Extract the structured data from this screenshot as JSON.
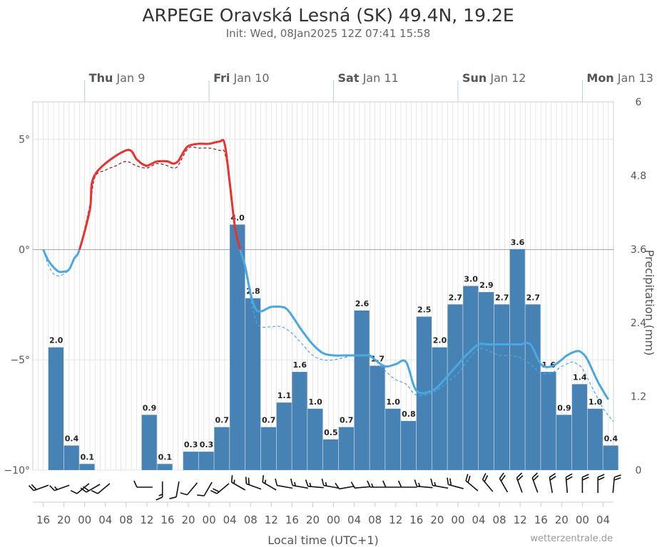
{
  "header": {
    "title": "ARPEGE Oravská Lesná (SK) 49.4N, 19.2E",
    "subtitle": "Init: Wed, 08Jan2025 12Z 07:41 15:58"
  },
  "credit": "wetterzentrale.de",
  "colors": {
    "bar": "#4682b4",
    "temp_below": "#4aa8e0",
    "temp_above": "#e8322e",
    "dewpoint_below": "#4aa8e0",
    "dewpoint_above": "#8b1a1a",
    "grid": "#dddddd",
    "wind": "#111111"
  },
  "chart_data": {
    "type": "bar",
    "title": "ARPEGE Oravská Lesná (SK) 49.4N, 19.2E",
    "xlabel": "Local time (UTC+1)",
    "ylabel_right": "Precipitation (mm)",
    "x_unit": "hours since Wed 08 Jan 16:00 local",
    "xlim": [
      -2,
      110
    ],
    "y_left_lim": [
      -10,
      6.7
    ],
    "y_right_lim": [
      0,
      6
    ],
    "left_ticks": [
      {
        "value": 5,
        "label": "5°"
      },
      {
        "value": 0,
        "label": "0°"
      },
      {
        "value": -5,
        "label": "−5°"
      },
      {
        "value": -10,
        "label": "−10°"
      }
    ],
    "right_ticks": [
      {
        "value": 6,
        "label": "6"
      },
      {
        "value": 4.8,
        "label": "4.8"
      },
      {
        "value": 3.6,
        "label": "3.6"
      },
      {
        "value": 2.4,
        "label": "2.4"
      },
      {
        "value": 1.2,
        "label": "1.2"
      },
      {
        "value": 0,
        "label": "0"
      }
    ],
    "x_ticks": [
      {
        "t": 0,
        "label": "16"
      },
      {
        "t": 4,
        "label": "20"
      },
      {
        "t": 8,
        "label": "00"
      },
      {
        "t": 12,
        "label": "04"
      },
      {
        "t": 16,
        "label": "08"
      },
      {
        "t": 20,
        "label": "12"
      },
      {
        "t": 24,
        "label": "16"
      },
      {
        "t": 28,
        "label": "20"
      },
      {
        "t": 32,
        "label": "00"
      },
      {
        "t": 36,
        "label": "04"
      },
      {
        "t": 40,
        "label": "08"
      },
      {
        "t": 44,
        "label": "12"
      },
      {
        "t": 48,
        "label": "16"
      },
      {
        "t": 52,
        "label": "20"
      },
      {
        "t": 56,
        "label": "00"
      },
      {
        "t": 60,
        "label": "04"
      },
      {
        "t": 64,
        "label": "08"
      },
      {
        "t": 68,
        "label": "12"
      },
      {
        "t": 72,
        "label": "16"
      },
      {
        "t": 76,
        "label": "20"
      },
      {
        "t": 80,
        "label": "00"
      },
      {
        "t": 84,
        "label": "04"
      },
      {
        "t": 88,
        "label": "08"
      },
      {
        "t": 92,
        "label": "12"
      },
      {
        "t": 96,
        "label": "16"
      },
      {
        "t": 100,
        "label": "20"
      },
      {
        "t": 104,
        "label": "00"
      },
      {
        "t": 108,
        "label": "04"
      }
    ],
    "day_labels": [
      {
        "t": 8,
        "bold": "Thu",
        "rest": " Jan 9"
      },
      {
        "t": 32,
        "bold": "Fri",
        "rest": " Jan 10"
      },
      {
        "t": 56,
        "bold": "Sat",
        "rest": " Jan 11"
      },
      {
        "t": 80,
        "bold": "Sun",
        "rest": " Jan 12"
      },
      {
        "t": 104,
        "bold": "Mon",
        "rest": " Jan 13"
      }
    ],
    "precip_bars": [
      {
        "start": 1,
        "end": 4,
        "value": 2.0,
        "label": "2.0"
      },
      {
        "start": 4,
        "end": 7,
        "value": 0.4,
        "label": "0.4"
      },
      {
        "start": 7,
        "end": 10,
        "value": 0.1,
        "label": "0.1"
      },
      {
        "start": 19,
        "end": 22,
        "value": 0.9,
        "label": "0.9"
      },
      {
        "start": 22,
        "end": 25,
        "value": 0.1,
        "label": "0.1"
      },
      {
        "start": 27,
        "end": 30,
        "value": 0.3,
        "label": "0.3"
      },
      {
        "start": 30,
        "end": 33,
        "value": 0.3,
        "label": "0.3"
      },
      {
        "start": 33,
        "end": 36,
        "value": 0.7,
        "label": "0.7"
      },
      {
        "start": 36,
        "end": 39,
        "value": 4.0,
        "label": "4.0"
      },
      {
        "start": 39,
        "end": 42,
        "value": 2.8,
        "label": "2.8"
      },
      {
        "start": 42,
        "end": 45,
        "value": 0.7,
        "label": "0.7"
      },
      {
        "start": 45,
        "end": 48,
        "value": 1.1,
        "label": "1.1"
      },
      {
        "start": 48,
        "end": 51,
        "value": 1.6,
        "label": "1.6"
      },
      {
        "start": 51,
        "end": 54,
        "value": 1.0,
        "label": "1.0"
      },
      {
        "start": 54,
        "end": 57,
        "value": 0.5,
        "label": "0.5"
      },
      {
        "start": 57,
        "end": 60,
        "value": 0.7,
        "label": "0.7"
      },
      {
        "start": 60,
        "end": 63,
        "value": 2.6,
        "label": "2.6"
      },
      {
        "start": 63,
        "end": 66,
        "value": 1.7,
        "label": "1.7"
      },
      {
        "start": 66,
        "end": 69,
        "value": 1.0,
        "label": "1.0"
      },
      {
        "start": 69,
        "end": 72,
        "value": 0.8,
        "label": "0.8"
      },
      {
        "start": 72,
        "end": 75,
        "value": 2.5,
        "label": "2.5"
      },
      {
        "start": 75,
        "end": 78,
        "value": 2.0,
        "label": "2.0"
      },
      {
        "start": 78,
        "end": 81,
        "value": 2.7,
        "label": "2.7"
      },
      {
        "start": 81,
        "end": 84,
        "value": 3.0,
        "label": "3.0"
      },
      {
        "start": 84,
        "end": 87,
        "value": 2.9,
        "label": "2.9"
      },
      {
        "start": 87,
        "end": 90,
        "value": 2.7,
        "label": "2.7"
      },
      {
        "start": 90,
        "end": 93,
        "value": 3.6,
        "label": "3.6"
      },
      {
        "start": 93,
        "end": 96,
        "value": 2.7,
        "label": "2.7"
      },
      {
        "start": 96,
        "end": 99,
        "value": 1.6,
        "label": "1.6"
      },
      {
        "start": 99,
        "end": 102,
        "value": 0.9,
        "label": "0.9"
      },
      {
        "start": 102,
        "end": 105,
        "value": 1.4,
        "label": "1.4"
      },
      {
        "start": 105,
        "end": 108,
        "value": 1.0,
        "label": "1.0"
      },
      {
        "start": 108,
        "end": 111,
        "value": 0.4,
        "label": "0.4"
      }
    ],
    "temperature": [
      [
        0,
        0
      ],
      [
        1,
        -0.5
      ],
      [
        2,
        -0.8
      ],
      [
        3,
        -1.0
      ],
      [
        4,
        -1.0
      ],
      [
        5,
        -0.9
      ],
      [
        6,
        -0.4
      ],
      [
        7,
        0.0
      ],
      [
        9,
        1.8
      ],
      [
        10,
        3.4
      ],
      [
        16,
        4.5
      ],
      [
        18,
        4.1
      ],
      [
        19,
        3.9
      ],
      [
        20,
        3.8
      ],
      [
        21,
        3.9
      ],
      [
        22,
        4.0
      ],
      [
        24,
        4.0
      ],
      [
        25,
        3.9
      ],
      [
        26,
        4.0
      ],
      [
        27,
        4.4
      ],
      [
        28,
        4.7
      ],
      [
        30,
        4.8
      ],
      [
        32,
        4.8
      ],
      [
        34,
        4.9
      ],
      [
        35,
        4.8
      ],
      [
        36,
        3.0
      ],
      [
        37,
        1.0
      ],
      [
        38,
        0.0
      ],
      [
        39,
        -0.8
      ],
      [
        40,
        -2.0
      ],
      [
        41,
        -2.7
      ],
      [
        42,
        -2.8
      ],
      [
        43,
        -2.7
      ],
      [
        44,
        -2.6
      ],
      [
        46,
        -2.6
      ],
      [
        47,
        -2.7
      ],
      [
        48,
        -3.0
      ],
      [
        50,
        -3.7
      ],
      [
        52,
        -4.3
      ],
      [
        54,
        -4.7
      ],
      [
        56,
        -4.8
      ],
      [
        58,
        -4.8
      ],
      [
        60,
        -4.8
      ],
      [
        62,
        -4.8
      ],
      [
        63,
        -4.8
      ],
      [
        64,
        -5.0
      ],
      [
        66,
        -5.3
      ],
      [
        68,
        -5.2
      ],
      [
        70,
        -5.1
      ],
      [
        72,
        -6.4
      ],
      [
        75,
        -6.4
      ],
      [
        77,
        -6.0
      ],
      [
        80,
        -5.2
      ],
      [
        82,
        -4.7
      ],
      [
        84,
        -4.3
      ],
      [
        86,
        -4.3
      ],
      [
        88,
        -4.3
      ],
      [
        90,
        -4.3
      ],
      [
        92,
        -4.3
      ],
      [
        94,
        -4.3
      ],
      [
        96,
        -5.2
      ],
      [
        98,
        -5.3
      ],
      [
        100,
        -5.0
      ],
      [
        101,
        -4.8
      ],
      [
        103,
        -4.6
      ],
      [
        104,
        -4.7
      ],
      [
        105,
        -5.0
      ],
      [
        107,
        -6.0
      ],
      [
        109,
        -6.8
      ]
    ],
    "dewpoint": [
      [
        0,
        0
      ],
      [
        1,
        -0.7
      ],
      [
        2,
        -1.1
      ],
      [
        3,
        -1.2
      ],
      [
        4,
        -1.1
      ],
      [
        5,
        -0.9
      ],
      [
        6,
        -0.4
      ],
      [
        7,
        0.0
      ],
      [
        9,
        2.0
      ],
      [
        10,
        3.3
      ],
      [
        12,
        3.6
      ],
      [
        14,
        3.8
      ],
      [
        16,
        4.0
      ],
      [
        18,
        3.8
      ],
      [
        20,
        3.7
      ],
      [
        22,
        3.9
      ],
      [
        24,
        3.8
      ],
      [
        25,
        3.7
      ],
      [
        26,
        3.8
      ],
      [
        28,
        4.6
      ],
      [
        30,
        4.6
      ],
      [
        32,
        4.6
      ],
      [
        34,
        4.5
      ],
      [
        35,
        4.4
      ],
      [
        36,
        3.0
      ],
      [
        37,
        1.0
      ],
      [
        38,
        0.0
      ],
      [
        39,
        -1.0
      ],
      [
        40,
        -2.2
      ],
      [
        41,
        -3.2
      ],
      [
        42,
        -3.5
      ],
      [
        44,
        -3.5
      ],
      [
        46,
        -3.5
      ],
      [
        48,
        -3.8
      ],
      [
        50,
        -4.3
      ],
      [
        52,
        -4.8
      ],
      [
        54,
        -5.0
      ],
      [
        56,
        -5.0
      ],
      [
        58,
        -4.9
      ],
      [
        60,
        -4.8
      ],
      [
        62,
        -4.8
      ],
      [
        64,
        -5.0
      ],
      [
        66,
        -5.5
      ],
      [
        68,
        -5.9
      ],
      [
        70,
        -6.1
      ],
      [
        72,
        -6.6
      ],
      [
        75,
        -6.5
      ],
      [
        77,
        -6.2
      ],
      [
        80,
        -5.6
      ],
      [
        82,
        -5.0
      ],
      [
        84,
        -4.5
      ],
      [
        86,
        -4.6
      ],
      [
        88,
        -4.8
      ],
      [
        90,
        -4.8
      ],
      [
        92,
        -4.9
      ],
      [
        94,
        -5.2
      ],
      [
        96,
        -5.6
      ],
      [
        98,
        -5.6
      ],
      [
        100,
        -5.3
      ],
      [
        102,
        -5.1
      ],
      [
        103,
        -5.2
      ],
      [
        104,
        -5.4
      ],
      [
        106,
        -6.3
      ],
      [
        108,
        -7.2
      ],
      [
        110,
        -7.8
      ]
    ],
    "wind_barbs": [
      {
        "t": 0,
        "dir": 250,
        "kt": 18
      },
      {
        "t": 4,
        "dir": 250,
        "kt": 14
      },
      {
        "t": 8,
        "dir": 230,
        "kt": 12
      },
      {
        "t": 10,
        "dir": 240,
        "kt": 18
      },
      {
        "t": 12,
        "dir": 230,
        "kt": 12
      },
      {
        "t": 20,
        "dir": 270,
        "kt": 12
      },
      {
        "t": 23,
        "dir": 180,
        "kt": 15
      },
      {
        "t": 26,
        "dir": 190,
        "kt": 12
      },
      {
        "t": 29,
        "dir": 220,
        "kt": 12
      },
      {
        "t": 32,
        "dir": 210,
        "kt": 12
      },
      {
        "t": 35,
        "dir": 230,
        "kt": 18
      },
      {
        "t": 38,
        "dir": 300,
        "kt": 15
      },
      {
        "t": 41,
        "dir": 290,
        "kt": 18
      },
      {
        "t": 44,
        "dir": 300,
        "kt": 15
      },
      {
        "t": 47,
        "dir": 280,
        "kt": 12
      },
      {
        "t": 50,
        "dir": 280,
        "kt": 15
      },
      {
        "t": 53,
        "dir": 275,
        "kt": 15
      },
      {
        "t": 56,
        "dir": 280,
        "kt": 15
      },
      {
        "t": 59,
        "dir": 260,
        "kt": 12
      },
      {
        "t": 62,
        "dir": 265,
        "kt": 12
      },
      {
        "t": 65,
        "dir": 270,
        "kt": 15
      },
      {
        "t": 68,
        "dir": 270,
        "kt": 12
      },
      {
        "t": 71,
        "dir": 270,
        "kt": 12
      },
      {
        "t": 74,
        "dir": 275,
        "kt": 15
      },
      {
        "t": 77,
        "dir": 280,
        "kt": 15
      },
      {
        "t": 80,
        "dir": 285,
        "kt": 18
      },
      {
        "t": 83,
        "dir": 310,
        "kt": 20
      },
      {
        "t": 86,
        "dir": 320,
        "kt": 20
      },
      {
        "t": 89,
        "dir": 330,
        "kt": 20
      },
      {
        "t": 92,
        "dir": 340,
        "kt": 20
      },
      {
        "t": 95,
        "dir": 340,
        "kt": 20
      },
      {
        "t": 98,
        "dir": 350,
        "kt": 20
      },
      {
        "t": 101,
        "dir": 355,
        "kt": 20
      },
      {
        "t": 104,
        "dir": 0,
        "kt": 20
      },
      {
        "t": 107,
        "dir": 0,
        "kt": 20
      },
      {
        "t": 110,
        "dir": 5,
        "kt": 20
      }
    ]
  }
}
